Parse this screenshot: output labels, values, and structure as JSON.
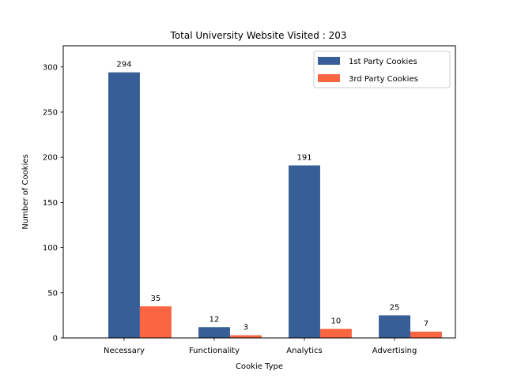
{
  "chart_data": {
    "type": "bar",
    "title": "Total University Website Visited : 203",
    "xlabel": "Cookie Type",
    "ylabel": "Number of Cookies",
    "categories": [
      "Necessary",
      "Functionality",
      "Analytics",
      "Advertising"
    ],
    "series": [
      {
        "name": "1st Party Cookies",
        "values": [
          294,
          12,
          191,
          25
        ],
        "color": "#375e97"
      },
      {
        "name": "3rd Party Cookies",
        "values": [
          35,
          3,
          10,
          7
        ],
        "color": "#fb6542"
      }
    ],
    "ylim": [
      0,
      323.4
    ],
    "yticks": [
      0,
      50,
      100,
      150,
      200,
      250,
      300
    ],
    "grid": false,
    "legend_position": "top-right"
  }
}
